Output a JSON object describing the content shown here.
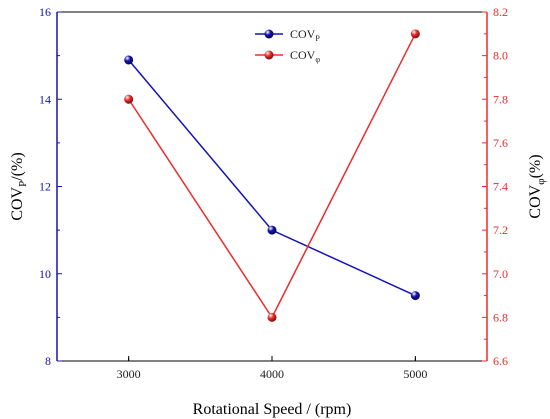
{
  "chart_data": {
    "type": "line",
    "x": [
      3000,
      4000,
      5000
    ],
    "x_ticks": [
      "3000",
      "4000",
      "5000"
    ],
    "xlabel": "Rotational Speed / (rpm)",
    "xlim": [
      2500,
      5500
    ],
    "ylabel_left": {
      "main": "COV",
      "sub": "P",
      "suffix": "/(%)"
    },
    "ylabel_right": {
      "main": "COV",
      "sub": "φ",
      "suffix": "(%)"
    },
    "ylim_left": [
      8,
      16
    ],
    "y_ticks_left": [
      "8",
      "10",
      "12",
      "14",
      "16"
    ],
    "ylim_right": [
      6.6,
      8.2
    ],
    "y_ticks_right": [
      "6.6",
      "6.8",
      "7.0",
      "7.2",
      "7.4",
      "7.6",
      "7.8",
      "8.0",
      "8.2"
    ],
    "series": [
      {
        "name": "COV",
        "name_sub": "P",
        "axis": "left",
        "color": "#1414b4",
        "values": [
          14.9,
          11.0,
          9.5
        ]
      },
      {
        "name": "COV",
        "name_sub": "φ",
        "axis": "right",
        "color": "#ee2b2b",
        "values": [
          7.8,
          6.8,
          8.1
        ]
      }
    ],
    "legend_position": "top-center",
    "grid": false
  }
}
